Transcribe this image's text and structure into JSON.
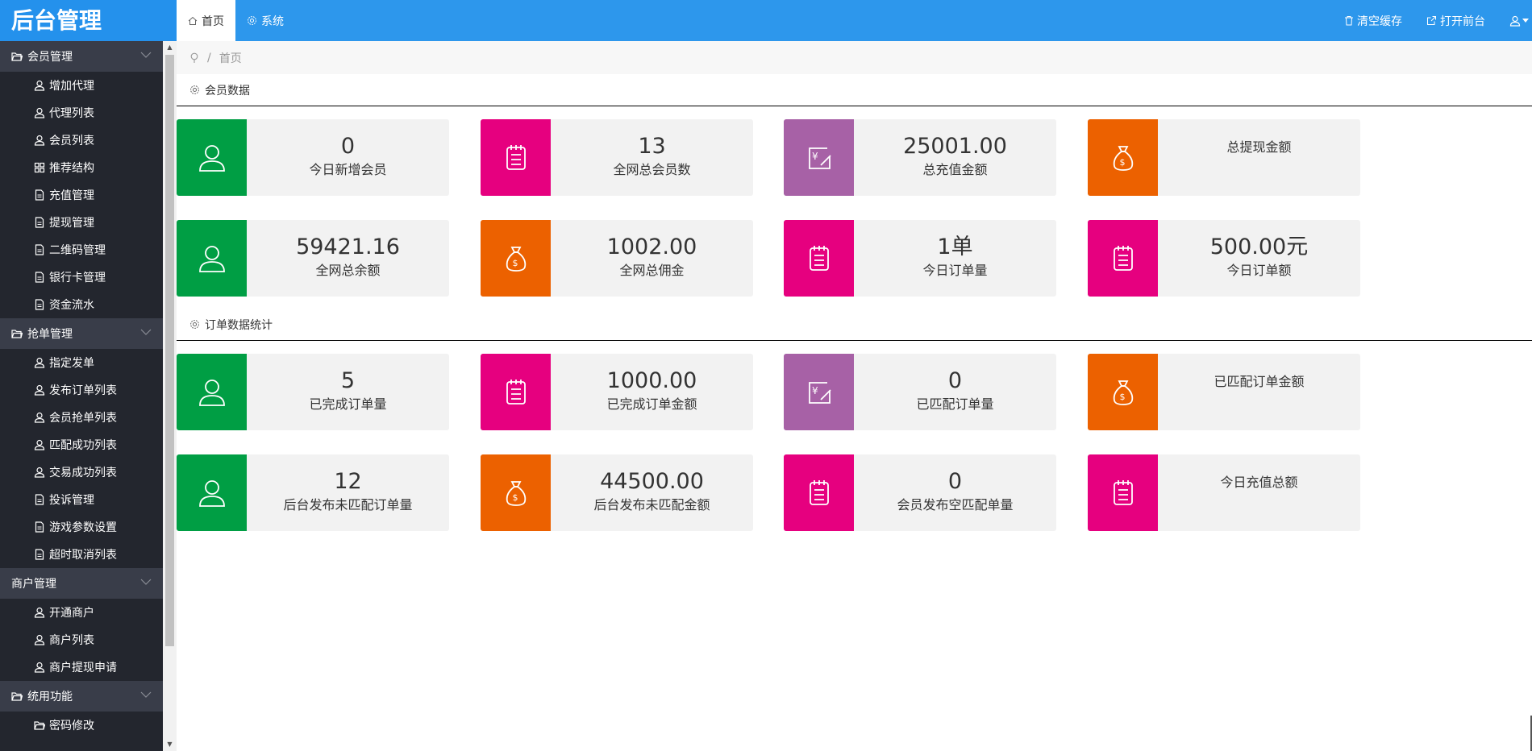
{
  "app": {
    "title": "后台管理"
  },
  "tabs": [
    {
      "label": "首页"
    },
    {
      "label": "系统"
    }
  ],
  "top_right": {
    "clear_cache": "清空缓存",
    "open_frontend": "打开前台"
  },
  "sidebar": {
    "groups": [
      {
        "label": "会员管理",
        "items": [
          {
            "label": "增加代理",
            "icon": "user-icon"
          },
          {
            "label": "代理列表",
            "icon": "user-icon"
          },
          {
            "label": "会员列表",
            "icon": "user-icon"
          },
          {
            "label": "推荐结构",
            "icon": "grid-icon"
          },
          {
            "label": "充值管理",
            "icon": "document-icon"
          },
          {
            "label": "提现管理",
            "icon": "document-icon"
          },
          {
            "label": "二维码管理",
            "icon": "document-icon"
          },
          {
            "label": "银行卡管理",
            "icon": "document-icon"
          },
          {
            "label": "资金流水",
            "icon": "document-icon"
          }
        ]
      },
      {
        "label": "抢单管理",
        "items": [
          {
            "label": "指定发单",
            "icon": "user-icon"
          },
          {
            "label": "发布订单列表",
            "icon": "user-icon"
          },
          {
            "label": "会员抢单列表",
            "icon": "user-icon"
          },
          {
            "label": "匹配成功列表",
            "icon": "user-icon"
          },
          {
            "label": "交易成功列表",
            "icon": "user-icon"
          },
          {
            "label": "投诉管理",
            "icon": "document-icon"
          },
          {
            "label": "游戏参数设置",
            "icon": "document-icon"
          },
          {
            "label": "超时取消列表",
            "icon": "document-icon"
          }
        ]
      },
      {
        "label": "商户管理",
        "items": [
          {
            "label": "开通商户",
            "icon": "user-icon"
          },
          {
            "label": "商户列表",
            "icon": "user-icon"
          },
          {
            "label": "商户提现申请",
            "icon": "user-icon"
          }
        ]
      },
      {
        "label": "统用功能",
        "items": [
          {
            "label": "密码修改",
            "icon": "folder-icon"
          }
        ]
      }
    ]
  },
  "breadcrumb": {
    "current": "首页"
  },
  "sections": {
    "member": "会员数据",
    "order": "订单数据统计"
  },
  "cards": [
    {
      "value": "0",
      "label": "今日新增会员",
      "color": "#009e44",
      "icon": "user-icon"
    },
    {
      "value": "13",
      "label": "全网总会员数",
      "color": "#e6007f",
      "icon": "notepad-icon"
    },
    {
      "value": "25001.00",
      "label": "总充值金额",
      "color": "#a761a6",
      "icon": "yen-edit-icon"
    },
    {
      "value": "",
      "label": "总提现金额",
      "color": "#ec6100",
      "icon": "money-bag-icon"
    },
    {
      "value": "59421.16",
      "label": "全网总余额",
      "color": "#009e44",
      "icon": "user-icon"
    },
    {
      "value": "1002.00",
      "label": "全网总佣金",
      "color": "#ec6100",
      "icon": "money-bag-icon"
    },
    {
      "value": "1单",
      "label": "今日订单量",
      "color": "#e6007f",
      "icon": "notepad-icon"
    },
    {
      "value": "500.00元",
      "label": "今日订单额",
      "color": "#e6007f",
      "icon": "notepad-icon"
    },
    {
      "value": "5",
      "label": "已完成订单量",
      "color": "#009e44",
      "icon": "user-icon"
    },
    {
      "value": "1000.00",
      "label": "已完成订单金额",
      "color": "#e6007f",
      "icon": "notepad-icon"
    },
    {
      "value": "0",
      "label": "已匹配订单量",
      "color": "#a761a6",
      "icon": "yen-edit-icon"
    },
    {
      "value": "",
      "label": "已匹配订单金额",
      "color": "#ec6100",
      "icon": "money-bag-icon"
    },
    {
      "value": "12",
      "label": "后台发布未匹配订单量",
      "color": "#009e44",
      "icon": "user-icon"
    },
    {
      "value": "44500.00",
      "label": "后台发布未匹配金额",
      "color": "#ec6100",
      "icon": "money-bag-icon"
    },
    {
      "value": "0",
      "label": "会员发布空匹配单量",
      "color": "#e6007f",
      "icon": "notepad-icon"
    },
    {
      "value": "",
      "label": "今日充值总额",
      "color": "#e6007f",
      "icon": "notepad-icon"
    }
  ]
}
